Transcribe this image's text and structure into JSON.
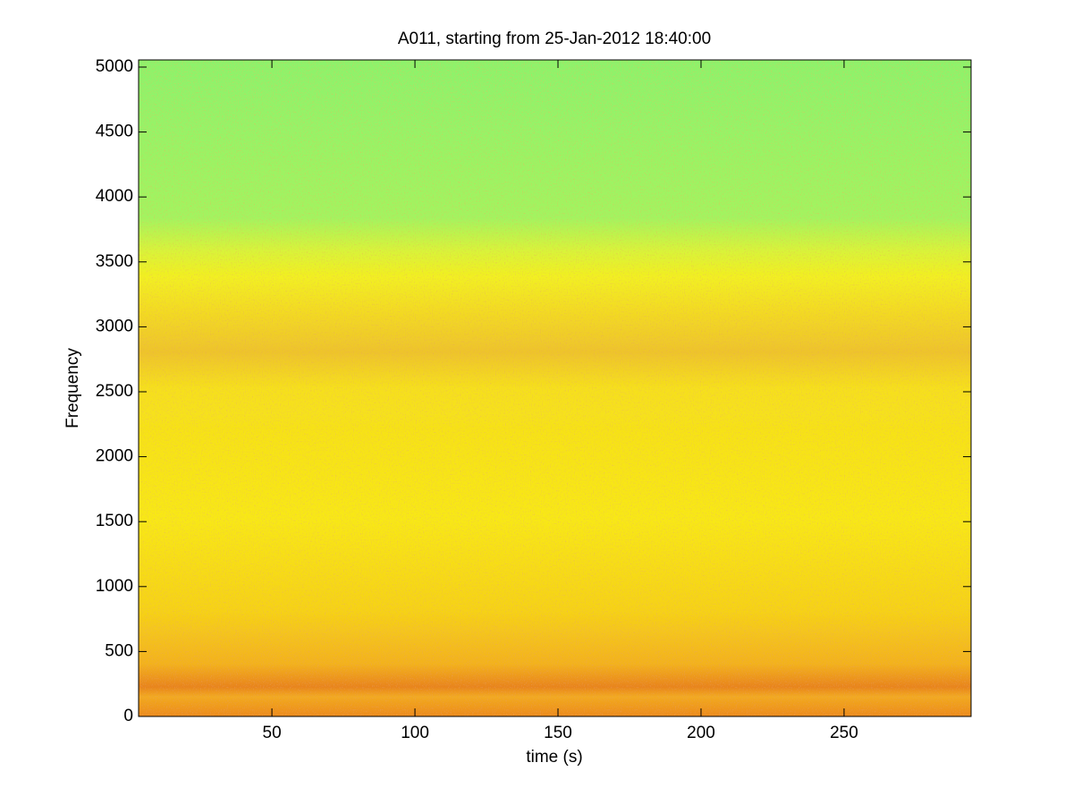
{
  "chart_data": {
    "type": "spectrogram",
    "title": "A011, starting from 25-Jan-2012 18:40:00",
    "x_label": "time (s)",
    "y_label": "Frequency",
    "xlim": [
      3.4,
      294.4
    ],
    "xticks": [
      50,
      100,
      150,
      200,
      250
    ],
    "ylim": [
      0,
      5055
    ],
    "yticks": [
      0,
      500,
      1000,
      1500,
      2000,
      2500,
      3000,
      3500,
      4000,
      4500,
      5000
    ]
  }
}
